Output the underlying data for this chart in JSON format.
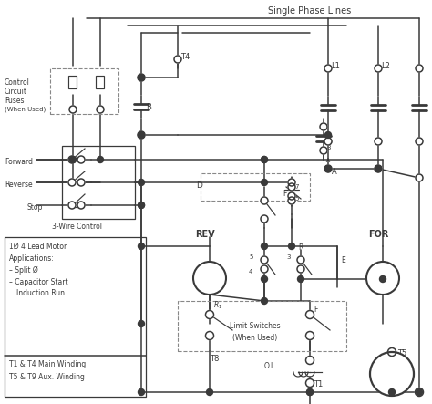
{
  "bg_color": "#ffffff",
  "lc": "#3a3a3a",
  "title": "Single Phase Lines",
  "figsize": [
    4.74,
    4.43
  ],
  "dpi": 100,
  "xlim": [
    0,
    474
  ],
  "ylim": [
    0,
    443
  ]
}
